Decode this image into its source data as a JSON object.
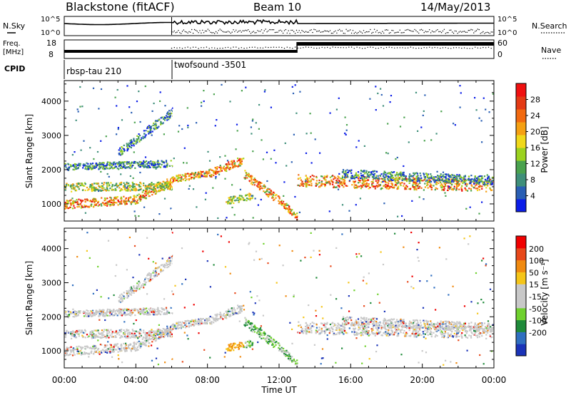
{
  "header": {
    "station": "Blackstone (fitACF)",
    "beam": "Beam 10",
    "date": "14/May/2013"
  },
  "panels": {
    "nsky_label": "N.Sky",
    "nsearch_label": "N.Search",
    "freq_label_1": "Freq.",
    "freq_label_2": "[MHz]",
    "nave_label": "Nave",
    "cpid_label": "CPID",
    "cpid_1": "rbsp-tau 210",
    "cpid_2": "twofsound -3501",
    "noise_ticks_left": [
      "10^5",
      "10^0"
    ],
    "noise_ticks_right": [
      "10^5",
      "10^0"
    ],
    "freq_ticks_left": [
      "18",
      "8"
    ],
    "nave_ticks_right": [
      "60",
      "0"
    ]
  },
  "colors": {
    "power_scale": [
      "#0b1de8",
      "#2a5fb4",
      "#3f8f7a",
      "#4aa24e",
      "#9bd21f",
      "#f0d81a",
      "#f5a012",
      "#f26a10",
      "#e43a14",
      "#f01010"
    ],
    "velocity_scale": [
      "#1a33b8",
      "#2f6fc0",
      "#1f8a3a",
      "#6fd12e",
      "#c8c8c8",
      "#c8c8c8",
      "#f5c518",
      "#f08a10",
      "#e8481a",
      "#f00000"
    ]
  },
  "chart_data": [
    {
      "type": "heatmap",
      "title": "",
      "xlabel": "Time UT",
      "ylabel": "Slant Range [km]",
      "x_ticks": [
        "00:00",
        "04:00",
        "08:00",
        "12:00",
        "16:00",
        "20:00",
        "00:00"
      ],
      "x_range_hours": [
        0,
        24
      ],
      "y_ticks": [
        1000,
        2000,
        3000,
        4000
      ],
      "y_range_km": [
        500,
        4600
      ],
      "colorbar_label": "Power [dB]",
      "colorbar_ticks": [
        4,
        8,
        12,
        16,
        20,
        24,
        28
      ],
      "colorbar_range": [
        0,
        32
      ],
      "grid": false
    },
    {
      "type": "heatmap",
      "title": "",
      "xlabel": "Time UT",
      "ylabel": "Slant Range [km]",
      "x_ticks": [
        "00:00",
        "04:00",
        "08:00",
        "12:00",
        "16:00",
        "20:00",
        "00:00"
      ],
      "x_range_hours": [
        0,
        24
      ],
      "y_ticks": [
        1000,
        2000,
        3000,
        4000
      ],
      "y_range_km": [
        500,
        4600
      ],
      "colorbar_label": "Velocity [m s⁻¹]",
      "colorbar_ticks": [
        -200,
        -100,
        -50,
        -15,
        15,
        50,
        100,
        200
      ],
      "grid": false
    }
  ]
}
